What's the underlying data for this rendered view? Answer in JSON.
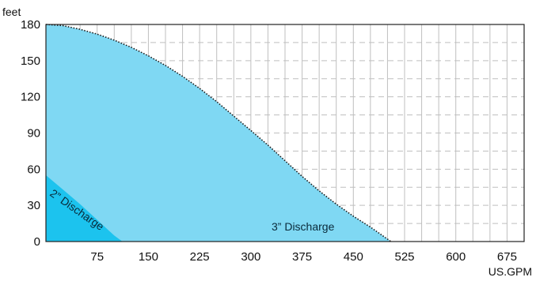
{
  "chart_data": {
    "type": "area",
    "ylabel": "feet",
    "xlabel": "US.GPM",
    "xlim": [
      0,
      700
    ],
    "ylim": [
      0,
      180
    ],
    "x_ticks": [
      "75",
      "150",
      "225",
      "300",
      "375",
      "450",
      "525",
      "600",
      "675"
    ],
    "y_ticks": [
      "0",
      "30",
      "60",
      "90",
      "120",
      "150",
      "180"
    ],
    "grid": true,
    "series": [
      {
        "name": "3” Discharge",
        "color": "#7fd8f3",
        "x": [
          0,
          25,
          50,
          75,
          100,
          125,
          150,
          175,
          200,
          225,
          250,
          275,
          300,
          325,
          350,
          375,
          400,
          425,
          450,
          475,
          500,
          505
        ],
        "y": [
          180,
          179,
          176,
          172,
          167,
          161,
          154,
          146,
          137,
          127,
          116,
          104,
          92,
          80,
          67,
          54,
          42,
          31,
          21,
          12,
          2,
          0
        ]
      },
      {
        "name": "2” Discharge",
        "color": "#1cc3ee",
        "x": [
          0,
          25,
          50,
          75,
          100,
          112
        ],
        "y": [
          55,
          43,
          31,
          18,
          5,
          0
        ]
      }
    ],
    "annotations": [
      "2” Discharge",
      "3” Discharge"
    ]
  }
}
